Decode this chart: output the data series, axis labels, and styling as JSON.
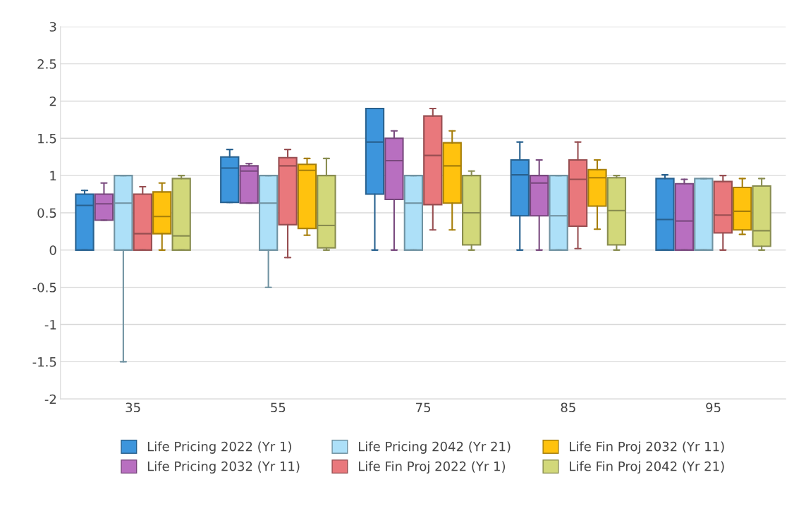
{
  "chart_data": {
    "type": "box",
    "categories": [
      "35",
      "55",
      "75",
      "85",
      "95"
    ],
    "ylim": [
      -2,
      3
    ],
    "yticks": [
      -2,
      -1.5,
      -1,
      -0.5,
      0,
      0.5,
      1,
      1.5,
      2,
      2.5,
      3
    ],
    "grid": "y",
    "legend": "bottom",
    "series": [
      {
        "name": "Life Pricing 2022 (Yr 1)",
        "color": "#3d95dc",
        "boxes": [
          {
            "low": 0,
            "q1": 0,
            "median": 0.6,
            "q3": 0.75,
            "high": 0.8
          },
          {
            "low": 0.64,
            "q1": 0.64,
            "median": 1.1,
            "q3": 1.25,
            "high": 1.35
          },
          {
            "low": 0,
            "q1": 0.75,
            "median": 1.45,
            "q3": 1.9,
            "high": 1.9
          },
          {
            "low": 0,
            "q1": 0.46,
            "median": 1.01,
            "q3": 1.21,
            "high": 1.45
          },
          {
            "low": 0,
            "q1": 0,
            "median": 0.41,
            "q3": 0.96,
            "high": 1.01
          }
        ]
      },
      {
        "name": "Life Pricing 2032 (Yr 11)",
        "color": "#b86fc0",
        "boxes": [
          {
            "low": 0.4,
            "q1": 0.4,
            "median": 0.62,
            "q3": 0.75,
            "high": 0.9
          },
          {
            "low": 0.63,
            "q1": 0.63,
            "median": 1.06,
            "q3": 1.13,
            "high": 1.16
          },
          {
            "low": 0,
            "q1": 0.68,
            "median": 1.2,
            "q3": 1.5,
            "high": 1.6
          },
          {
            "low": 0,
            "q1": 0.46,
            "median": 0.9,
            "q3": 1.0,
            "high": 1.21
          },
          {
            "low": 0,
            "q1": 0,
            "median": 0.39,
            "q3": 0.89,
            "high": 0.95
          }
        ]
      },
      {
        "name": "Life Pricing 2042 (Yr 21)",
        "color": "#ade0f8",
        "boxes": [
          {
            "low": -1.5,
            "q1": 0,
            "median": 0.63,
            "q3": 1.0,
            "high": 1.0
          },
          {
            "low": -0.5,
            "q1": 0,
            "median": 0.63,
            "q3": 1.0,
            "high": 1.0
          },
          {
            "low": 0,
            "q1": 0,
            "median": 0.63,
            "q3": 1.0,
            "high": 1.0
          },
          {
            "low": 0,
            "q1": 0,
            "median": 0.46,
            "q3": 1.0,
            "high": 1.0
          },
          {
            "low": 0,
            "q1": 0,
            "median": 0,
            "q3": 0.96,
            "high": 0.96
          }
        ]
      },
      {
        "name": "Life Fin Proj 2022 (Yr 1)",
        "color": "#e9787c",
        "boxes": [
          {
            "low": 0,
            "q1": 0,
            "median": 0.22,
            "q3": 0.75,
            "high": 0.85
          },
          {
            "low": -0.1,
            "q1": 0.34,
            "median": 1.13,
            "q3": 1.24,
            "high": 1.35
          },
          {
            "low": 0.27,
            "q1": 0.61,
            "median": 1.27,
            "q3": 1.8,
            "high": 1.9
          },
          {
            "low": 0.02,
            "q1": 0.32,
            "median": 0.95,
            "q3": 1.21,
            "high": 1.45
          },
          {
            "low": 0,
            "q1": 0.23,
            "median": 0.47,
            "q3": 0.92,
            "high": 1.0
          }
        ]
      },
      {
        "name": "Life Fin Proj 2032 (Yr 11)",
        "color": "#ffc20e",
        "boxes": [
          {
            "low": 0,
            "q1": 0.22,
            "median": 0.45,
            "q3": 0.78,
            "high": 0.9
          },
          {
            "low": 0.2,
            "q1": 0.29,
            "median": 1.07,
            "q3": 1.15,
            "high": 1.23
          },
          {
            "low": 0.27,
            "q1": 0.63,
            "median": 1.13,
            "q3": 1.44,
            "high": 1.6
          },
          {
            "low": 0.28,
            "q1": 0.59,
            "median": 0.97,
            "q3": 1.08,
            "high": 1.21
          },
          {
            "low": 0.21,
            "q1": 0.27,
            "median": 0.52,
            "q3": 0.84,
            "high": 0.96
          }
        ]
      },
      {
        "name": "Life Fin Proj 2042 (Yr 21)",
        "color": "#d2d87a",
        "boxes": [
          {
            "low": 0,
            "q1": 0,
            "median": 0.19,
            "q3": 0.96,
            "high": 1.0
          },
          {
            "low": 0,
            "q1": 0.03,
            "median": 0.33,
            "q3": 1.0,
            "high": 1.23
          },
          {
            "low": 0,
            "q1": 0.07,
            "median": 0.5,
            "q3": 1.0,
            "high": 1.06
          },
          {
            "low": 0,
            "q1": 0.07,
            "median": 0.53,
            "q3": 0.97,
            "high": 1.0
          },
          {
            "low": 0,
            "q1": 0.05,
            "median": 0.26,
            "q3": 0.86,
            "high": 0.96
          }
        ]
      }
    ]
  }
}
